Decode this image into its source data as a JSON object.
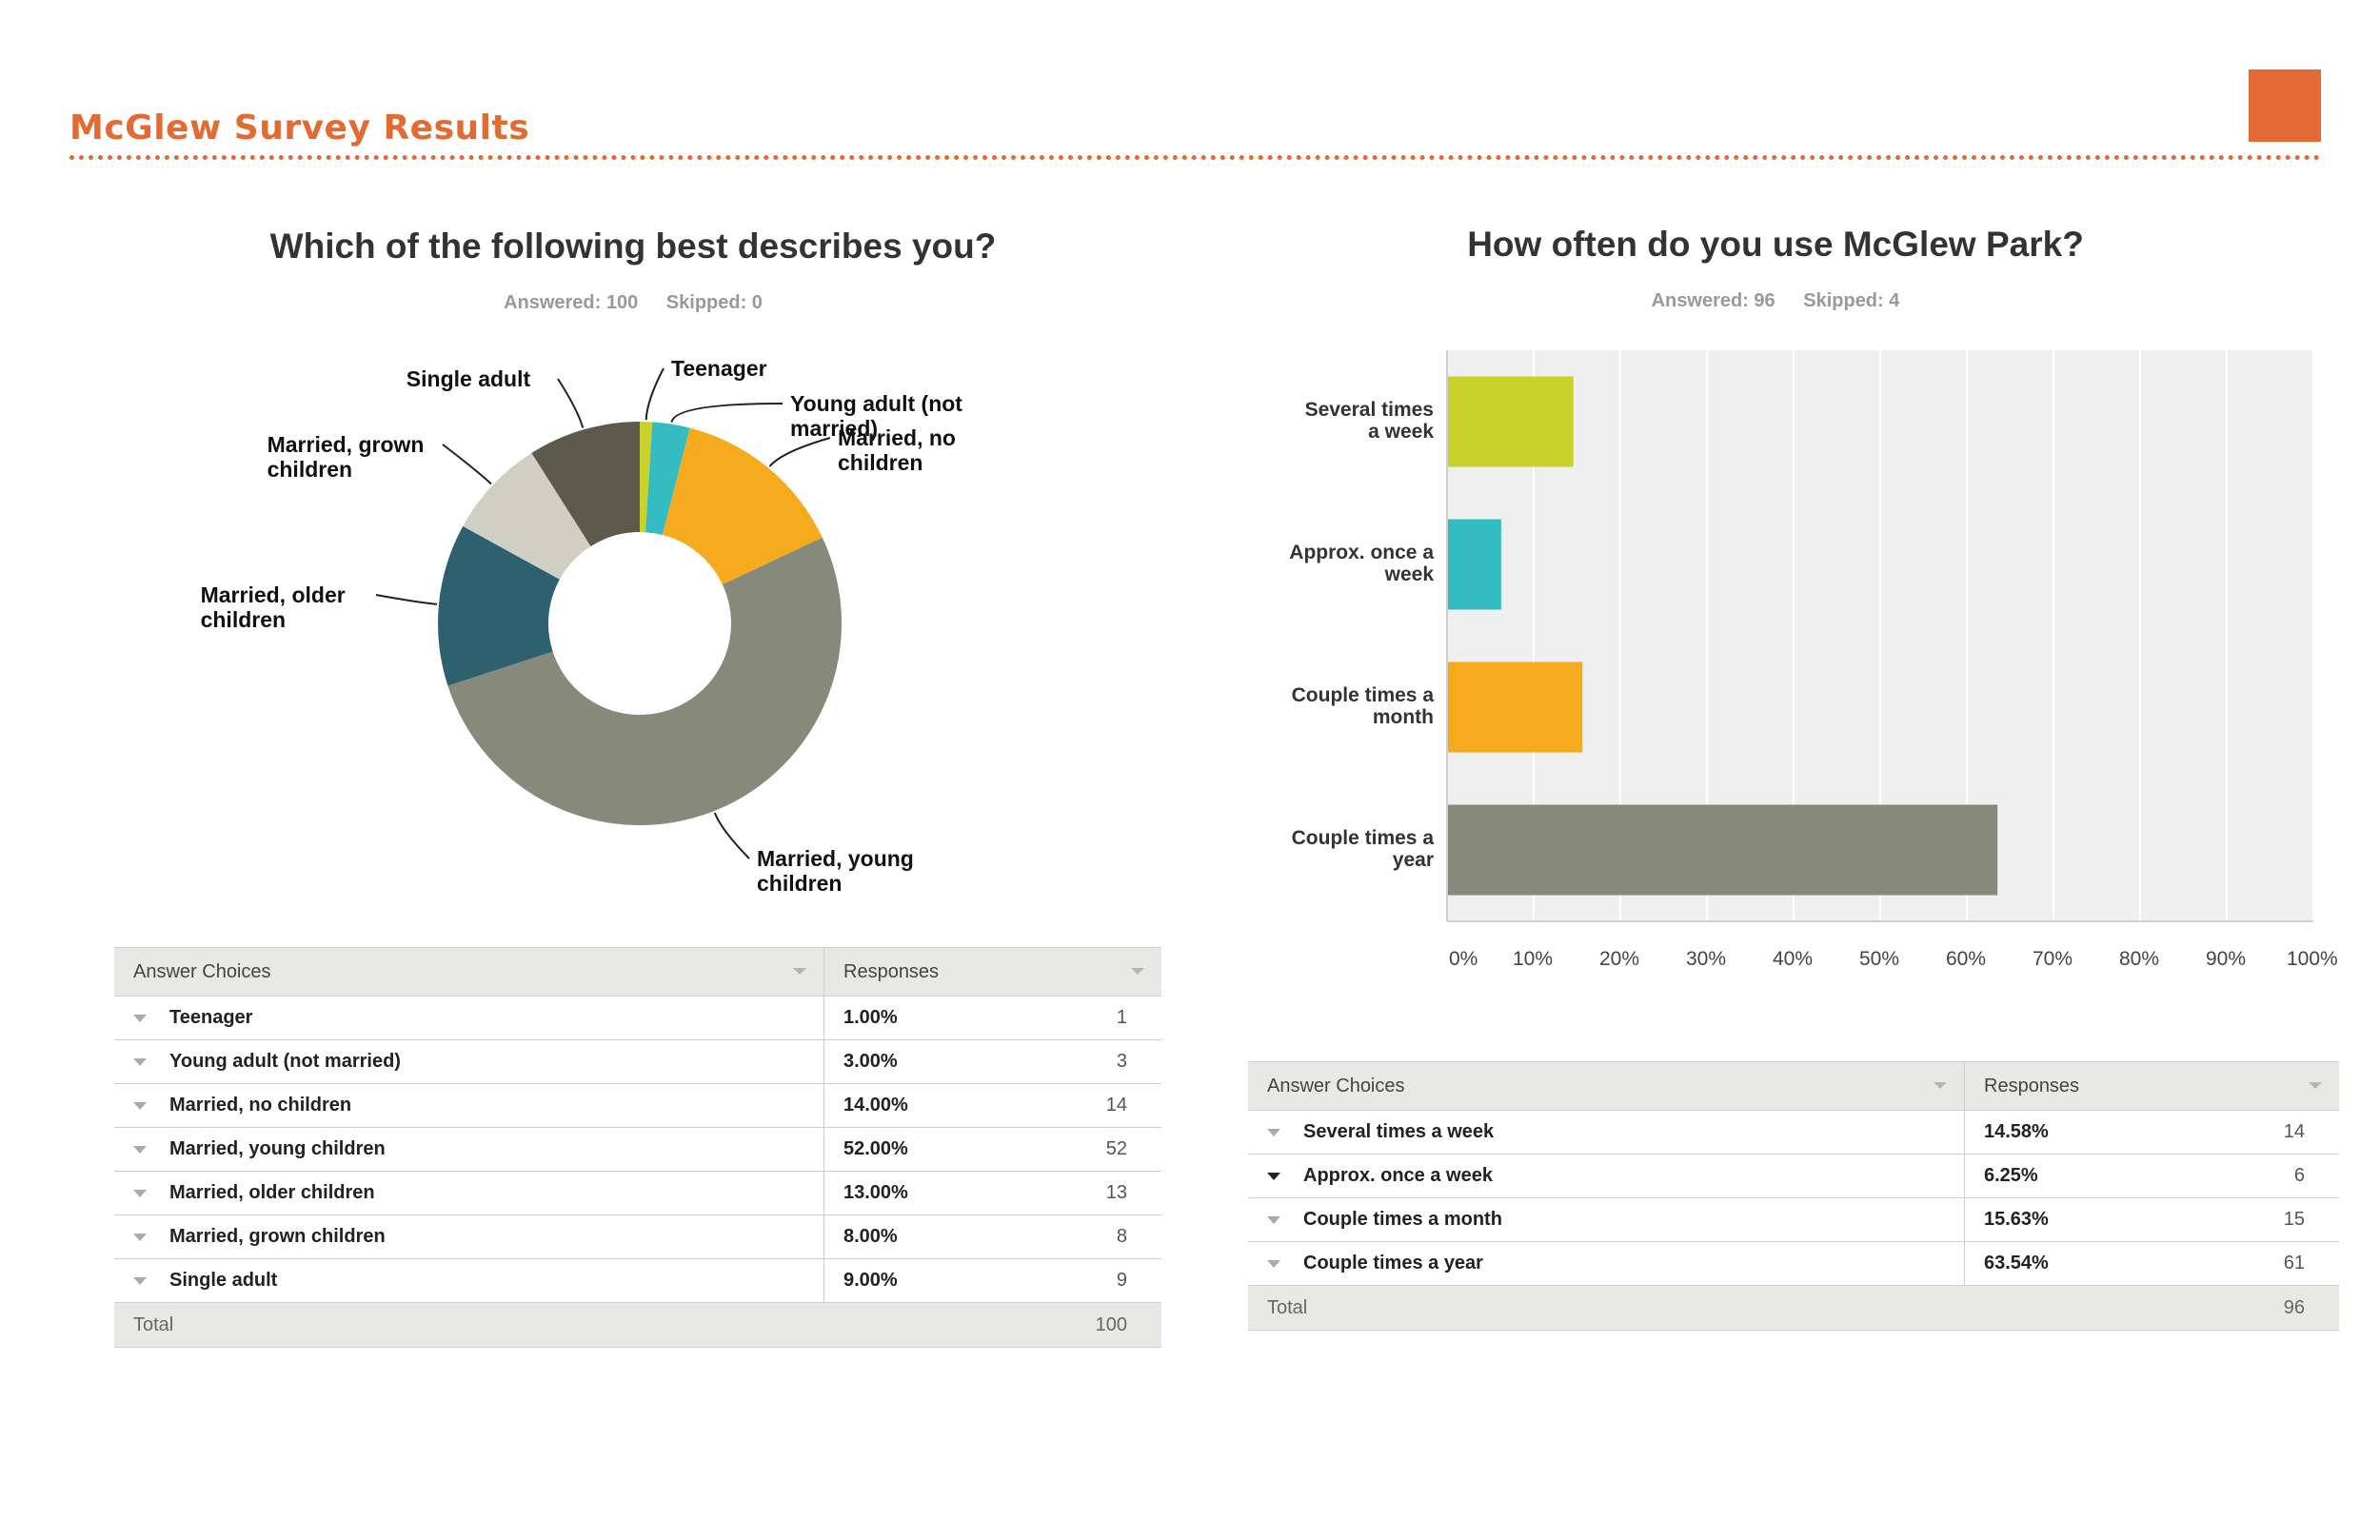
{
  "header": {
    "title": "McGlew Survey Results",
    "accent_color": "#e36b33"
  },
  "chart_data": [
    {
      "type": "pie",
      "variant": "donut",
      "title": "Which of the following best describes you?",
      "answered_label": "Answered: 100",
      "skipped_label": "Skipped: 0",
      "categories": [
        "Teenager",
        "Young adult (not married)",
        "Married, no children",
        "Married, young children",
        "Married, older children",
        "Married, grown children",
        "Single adult"
      ],
      "slice_labels": [
        "Teenager",
        "Young adult (not married)",
        "Married, no children",
        "Married, young children",
        "Married, older children",
        "Married, grown children",
        "Single adult"
      ],
      "values": [
        1,
        3,
        14,
        52,
        13,
        8,
        9
      ],
      "colors": [
        "#c9d22b",
        "#33bcc2",
        "#f6ab1f",
        "#878a7a",
        "#2d6170",
        "#d0cfc3",
        "#5c5a4d"
      ],
      "table": {
        "header_choice": "Answer Choices",
        "header_responses": "Responses",
        "rows": [
          {
            "choice": "Teenager",
            "percent": "1.00%",
            "count": "1"
          },
          {
            "choice": "Young adult (not married)",
            "percent": "3.00%",
            "count": "3"
          },
          {
            "choice": "Married, no children",
            "percent": "14.00%",
            "count": "14"
          },
          {
            "choice": "Married, young children",
            "percent": "52.00%",
            "count": "52"
          },
          {
            "choice": "Married, older children",
            "percent": "13.00%",
            "count": "13"
          },
          {
            "choice": "Married, grown children",
            "percent": "8.00%",
            "count": "8"
          },
          {
            "choice": "Single adult",
            "percent": "9.00%",
            "count": "9"
          }
        ],
        "total_label": "Total",
        "total_value": "100"
      }
    },
    {
      "type": "bar",
      "orientation": "horizontal",
      "title": "How often do you use McGlew Park?",
      "answered_label": "Answered: 96",
      "skipped_label": "Skipped: 4",
      "categories": [
        "Several times a week",
        "Approx. once a week",
        "Couple times a month",
        "Couple times a year"
      ],
      "category_labels": [
        [
          "Several times",
          "a week"
        ],
        [
          "Approx. once a",
          "week"
        ],
        [
          "Couple times a",
          "month"
        ],
        [
          "Couple times a",
          "year"
        ]
      ],
      "values": [
        14.58,
        6.25,
        15.63,
        63.54
      ],
      "colors": [
        "#c9d22b",
        "#33bcc2",
        "#f6ab1f",
        "#878a7a"
      ],
      "xlim": [
        0,
        100
      ],
      "x_ticks": [
        "0%",
        "10%",
        "20%",
        "30%",
        "40%",
        "50%",
        "60%",
        "70%",
        "80%",
        "90%",
        "100%"
      ],
      "grid": true,
      "plot_background": "#efefef",
      "table": {
        "header_choice": "Answer Choices",
        "header_responses": "Responses",
        "rows": [
          {
            "choice": "Several times a week",
            "percent": "14.58%",
            "count": "14"
          },
          {
            "choice": "Approx. once a week",
            "percent": "6.25%",
            "count": "6"
          },
          {
            "choice": "Couple times a month",
            "percent": "15.63%",
            "count": "15"
          },
          {
            "choice": "Couple times a year",
            "percent": "63.54%",
            "count": "61"
          }
        ],
        "total_label": "Total",
        "total_value": "96"
      }
    }
  ]
}
